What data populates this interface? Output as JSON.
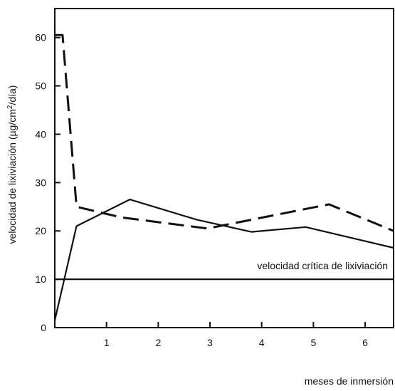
{
  "chart_data": {
    "type": "line",
    "x_axis": {
      "label": "meses de inmersión",
      "range": [
        0.0,
        6.55
      ],
      "tick_values": [
        1,
        2,
        3,
        4,
        5,
        6
      ],
      "tick_labels": [
        "1",
        "2",
        "3",
        "4",
        "5",
        "6"
      ]
    },
    "y_axis": {
      "label": "velocidad de lixiviación (µg/cm²/día)",
      "label_prefix": "velocidad de lixiviación (µg/cm",
      "label_superscript": "2",
      "label_suffix": "/día)",
      "range": [
        0,
        66
      ],
      "tick_values": [
        0,
        10,
        20,
        30,
        40,
        50,
        60
      ],
      "tick_labels": [
        "0",
        "10",
        "20",
        "30",
        "40",
        "50",
        "60"
      ]
    },
    "grid": false,
    "series": [
      {
        "style": "dashed",
        "color": "#111111",
        "points": [
          [
            0.0,
            60.5
          ],
          [
            0.15,
            60.5
          ],
          [
            0.42,
            25.0
          ],
          [
            1.28,
            22.8
          ],
          [
            2.95,
            20.5
          ],
          [
            5.3,
            25.5
          ],
          [
            6.55,
            20.0
          ]
        ]
      },
      {
        "style": "solid",
        "color": "#111111",
        "points": [
          [
            0.0,
            1.5
          ],
          [
            0.42,
            21.0
          ],
          [
            1.45,
            26.5
          ],
          [
            2.75,
            22.3
          ],
          [
            3.8,
            19.8
          ],
          [
            4.85,
            20.8
          ],
          [
            6.55,
            16.5
          ]
        ]
      }
    ],
    "reference_line": {
      "label": "velocidad crítica de lixiviación",
      "y": 10
    }
  }
}
